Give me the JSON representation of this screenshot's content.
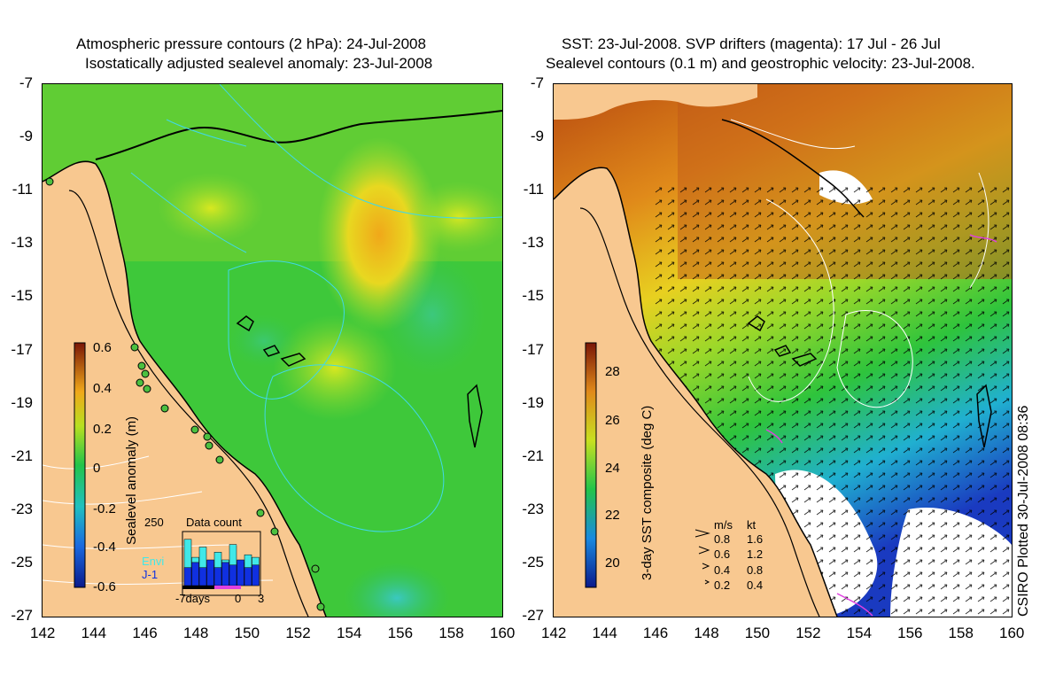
{
  "left_panel": {
    "title_line1": "Atmospheric pressure contours (2 hPa): 24-Jul-2008",
    "title_line2": "Isostatically adjusted sealevel anomaly: 23-Jul-2008",
    "colorbar": {
      "label": "Sealevel anomaly (m)",
      "ticks": [
        "0.6",
        "0.4",
        "0.2",
        "0",
        "-0.2",
        "-0.4",
        "-0.6"
      ]
    },
    "data_count": {
      "title": "Data count",
      "max_label": "250",
      "series": [
        "Envi",
        "J-1"
      ],
      "x_labels": [
        "-7days",
        "0",
        "3"
      ],
      "envi_levels": [
        0.9,
        0.55,
        0.75,
        0.4,
        0.65,
        0.5,
        0.8,
        0.45,
        0.6,
        0.55
      ],
      "j1_levels": [
        0.35,
        0.45,
        0.35,
        0.5,
        0.35,
        0.45,
        0.4,
        0.5,
        0.35,
        0.4
      ]
    }
  },
  "right_panel": {
    "title_line1": "SST: 23-Jul-2008. SVP drifters (magenta): 17 Jul - 26 Jul",
    "title_line2": "Sealevel contours (0.1 m) and geostrophic velocity: 23-Jul-2008.",
    "colorbar": {
      "label": "3-day SST composite (deg C)",
      "ticks": [
        "28",
        "26",
        "24",
        "22",
        "20"
      ]
    },
    "velocity_legend": {
      "header_ms": "m/s",
      "header_kt": "kt",
      "rows": [
        {
          "ms": "0.8",
          "kt": "1.6"
        },
        {
          "ms": "0.6",
          "kt": "1.2"
        },
        {
          "ms": "0.4",
          "kt": "0.8"
        },
        {
          "ms": "0.2",
          "kt": "0.4"
        }
      ]
    },
    "credit": "CSIRO Plotted 30-Jul-2008 08:36"
  },
  "axes": {
    "lat_labels": [
      "-7",
      "-9",
      "-11",
      "-13",
      "-15",
      "-17",
      "-19",
      "-21",
      "-23",
      "-25",
      "-27"
    ],
    "lon_labels": [
      "142",
      "144",
      "146",
      "148",
      "150",
      "152",
      "154",
      "156",
      "158",
      "160"
    ]
  },
  "colors": {
    "land": "#f8c890",
    "sla_low": "#0a1a8c",
    "sla_mid": "#22c44a",
    "sla_high": "#7a1606",
    "sst_warm": "#b84a10",
    "sst_cool": "#1a3ac0",
    "coast": "#000000",
    "pressure_contour": "#40d8e8",
    "sealevel_contour": "#ffffff"
  }
}
